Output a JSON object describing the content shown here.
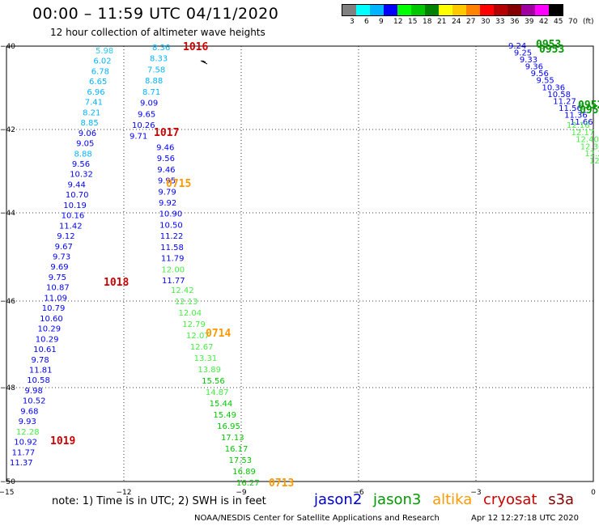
{
  "header": {
    "title": "00:00 – 11:59 UTC 04/11/2020",
    "subtitle": "12 hour collection of altimeter wave heights"
  },
  "color_scale": {
    "colors": [
      "#808080",
      "#00ffff",
      "#00b4ff",
      "#0000ff",
      "#00ff00",
      "#00c800",
      "#008200",
      "#ffff00",
      "#ffc800",
      "#ff8200",
      "#ff0000",
      "#b40000",
      "#820000",
      "#a000a0",
      "#ff00ff",
      "#000000"
    ],
    "labels": [
      "3",
      "6",
      "9",
      "12",
      "15",
      "18",
      "21",
      "24",
      "27",
      "30",
      "33",
      "36",
      "39",
      "42",
      "45",
      "70",
      "(ft)"
    ]
  },
  "map": {
    "lon_ticks": [
      "−15",
      "−12",
      "−9",
      "−6",
      "−3",
      "0"
    ],
    "lat_ticks": [
      "−40",
      "−42",
      "−44",
      "−46",
      "−48",
      "−50"
    ]
  },
  "tracks": [
    {
      "satellite": "jason2",
      "values": [
        "8.36",
        "8.33",
        "7.58",
        "8.88",
        "8.71",
        "9.09",
        "9.65",
        "10.26",
        "9.71",
        "9.46",
        "9.56",
        "9.46",
        "9.95",
        "9.79",
        "9.92",
        "10.90",
        "10.50",
        "11.22",
        "11.58",
        "11.79",
        "12.00",
        "11.77"
      ]
    },
    {
      "satellite": "jason3",
      "values": [
        "12.42",
        "12.13",
        "12.04",
        "12.79",
        "12.07",
        "12.67",
        "13.31",
        "13.89",
        "15.56",
        "14.87",
        "15.44",
        "15.49",
        "16.95",
        "17.13",
        "16.17",
        "17.53",
        "16.89",
        "16.27"
      ]
    },
    {
      "satellite": "jason2",
      "values": [
        "5.98",
        "6.02",
        "6.78",
        "6.65",
        "6.96",
        "7.41",
        "8.21",
        "8.85",
        "9.06",
        "9.05",
        "8.88",
        "9.56",
        "10.32",
        "9.44",
        "10.70",
        "10.19",
        "10.16",
        "11.42",
        "9.12",
        "9.67",
        "9.73",
        "9.69",
        "9.75",
        "10.87",
        "11.09",
        "10.79",
        "10.60",
        "10.29",
        "10.29",
        "10.61",
        "9.78",
        "11.81",
        "10.58",
        "9.98",
        "10.52",
        "9.68",
        "9.93",
        "12.28",
        "10.92",
        "11.77",
        "11.37"
      ]
    },
    {
      "satellite": "jason2",
      "values": [
        "9.24",
        "9.25",
        "9.33",
        "9.36",
        "9.56",
        "9.55",
        "10.36",
        "10.58",
        "11.27",
        "11.56",
        "11.36",
        "11.66"
      ]
    },
    {
      "satellite": "jason3",
      "values": [
        "12.16",
        "12.17",
        "12.40",
        "12.36",
        "12.28",
        "12.41"
      ]
    }
  ],
  "time_labels": [
    {
      "text": "1016",
      "satellite": "cryosat"
    },
    {
      "text": "1017",
      "satellite": "cryosat"
    },
    {
      "text": "0715",
      "satellite": "altika"
    },
    {
      "text": "1018",
      "satellite": "cryosat"
    },
    {
      "text": "0714",
      "satellite": "altika"
    },
    {
      "text": "1019",
      "satellite": "cryosat"
    },
    {
      "text": "0713",
      "satellite": "altika"
    },
    {
      "text": "0953",
      "satellite": "jason3"
    },
    {
      "text": "0953",
      "satellite": "jason3"
    },
    {
      "text": "0952",
      "satellite": "jason3"
    },
    {
      "text": "0952",
      "satellite": "jason3"
    }
  ],
  "satellite_colors": {
    "jason2": "#0000cc",
    "jason3": "#009900",
    "altika": "#ff9900",
    "cryosat": "#cc0000",
    "s3a": "#880000"
  },
  "note": "note: 1) Time is in UTC; 2) SWH is in feet",
  "legend": {
    "jason2": "jason2",
    "jason3": "jason3",
    "altika": "altika",
    "cryosat": "cryosat",
    "s3a": "s3a"
  },
  "footer": {
    "credit": "NOAA/NESDIS Center for Satellite Applications and Research",
    "timestamp": "Apr 12 12:27:18 UTC 2020"
  }
}
